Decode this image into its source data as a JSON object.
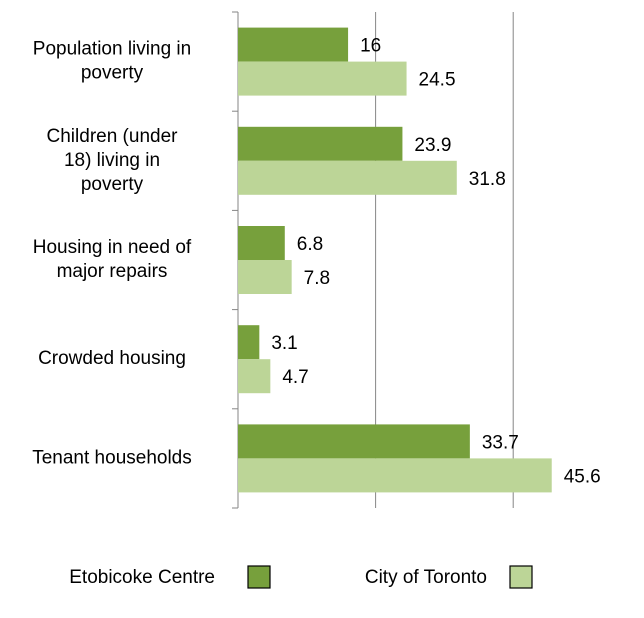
{
  "chart_data": {
    "type": "hbar",
    "categories": [
      [
        "Population living in",
        "poverty"
      ],
      [
        "Children (under",
        "18) living in",
        "poverty"
      ],
      [
        "Housing in need of",
        "major repairs"
      ],
      [
        "Crowded housing"
      ],
      [
        "Tenant households"
      ]
    ],
    "series": [
      {
        "name": "Etobicoke Centre",
        "color": "#77a03c",
        "values": [
          16,
          23.9,
          6.8,
          3.1,
          33.7
        ]
      },
      {
        "name": "City of Toronto",
        "color": "#bcd597",
        "values": [
          24.5,
          31.8,
          7.8,
          4.7,
          45.6
        ]
      }
    ],
    "xlim": [
      0,
      50
    ],
    "xticks": [
      0,
      20,
      40
    ],
    "grid": true,
    "legend": "bottom"
  }
}
